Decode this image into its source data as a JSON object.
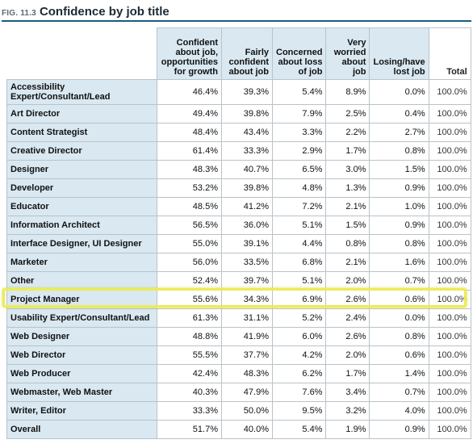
{
  "figure": {
    "number": "FIG. 11.3",
    "title": "Confidence by job title"
  },
  "chart_data": {
    "type": "table",
    "title": "Confidence by job title",
    "columns": [
      "Confident about job, opportunities for growth",
      "Fairly confident about job",
      "Concerned about loss of job",
      "Very worried about job",
      "Losing/have lost job",
      "Total"
    ],
    "column_lines": [
      [
        "Confident",
        "about job,",
        "opportunities",
        "for growth"
      ],
      [
        "Fairly",
        "confident",
        "about job"
      ],
      [
        "Concerned",
        "about loss",
        "of job"
      ],
      [
        "Very",
        "worried",
        "about",
        "job"
      ],
      [
        "Losing/have",
        "lost job"
      ],
      [
        "Total"
      ]
    ],
    "highlighted_row": "Project Manager",
    "rows": [
      {
        "label": "Accessibility Expert/Consultant/Lead",
        "label_lines": [
          "Accessibility",
          "Expert/Consultant/Lead"
        ],
        "values": [
          "46.4%",
          "39.3%",
          "5.4%",
          "8.9%",
          "0.0%",
          "100.0%"
        ]
      },
      {
        "label": "Art Director",
        "values": [
          "49.4%",
          "39.8%",
          "7.9%",
          "2.5%",
          "0.4%",
          "100.0%"
        ]
      },
      {
        "label": "Content Strategist",
        "values": [
          "48.4%",
          "43.4%",
          "3.3%",
          "2.2%",
          "2.7%",
          "100.0%"
        ]
      },
      {
        "label": "Creative Director",
        "values": [
          "61.4%",
          "33.3%",
          "2.9%",
          "1.7%",
          "0.8%",
          "100.0%"
        ]
      },
      {
        "label": "Designer",
        "values": [
          "48.3%",
          "40.7%",
          "6.5%",
          "3.0%",
          "1.5%",
          "100.0%"
        ]
      },
      {
        "label": "Developer",
        "values": [
          "53.2%",
          "39.8%",
          "4.8%",
          "1.3%",
          "0.9%",
          "100.0%"
        ]
      },
      {
        "label": "Educator",
        "values": [
          "48.5%",
          "41.2%",
          "7.2%",
          "2.1%",
          "1.0%",
          "100.0%"
        ]
      },
      {
        "label": "Information Architect",
        "values": [
          "56.5%",
          "36.0%",
          "5.1%",
          "1.5%",
          "0.9%",
          "100.0%"
        ]
      },
      {
        "label": "Interface Designer, UI Designer",
        "values": [
          "55.0%",
          "39.1%",
          "4.4%",
          "0.8%",
          "0.8%",
          "100.0%"
        ]
      },
      {
        "label": "Marketer",
        "values": [
          "56.0%",
          "33.5%",
          "6.8%",
          "2.1%",
          "1.6%",
          "100.0%"
        ]
      },
      {
        "label": "Other",
        "values": [
          "52.4%",
          "39.7%",
          "5.1%",
          "2.0%",
          "0.7%",
          "100.0%"
        ]
      },
      {
        "label": "Project Manager",
        "values": [
          "55.6%",
          "34.3%",
          "6.9%",
          "2.6%",
          "0.6%",
          "100.0%"
        ]
      },
      {
        "label": "Usability Expert/Consultant/Lead",
        "values": [
          "61.3%",
          "31.1%",
          "5.2%",
          "2.4%",
          "0.0%",
          "100.0%"
        ]
      },
      {
        "label": "Web Designer",
        "values": [
          "48.8%",
          "41.9%",
          "6.0%",
          "2.6%",
          "0.8%",
          "100.0%"
        ]
      },
      {
        "label": "Web Director",
        "values": [
          "55.5%",
          "37.7%",
          "4.2%",
          "2.0%",
          "0.6%",
          "100.0%"
        ]
      },
      {
        "label": "Web Producer",
        "values": [
          "42.4%",
          "48.3%",
          "6.2%",
          "1.7%",
          "1.4%",
          "100.0%"
        ]
      },
      {
        "label": "Webmaster, Web Master",
        "values": [
          "40.3%",
          "47.9%",
          "7.6%",
          "3.4%",
          "0.7%",
          "100.0%"
        ]
      },
      {
        "label": "Writer, Editor",
        "values": [
          "33.3%",
          "50.0%",
          "9.5%",
          "3.2%",
          "4.0%",
          "100.0%"
        ]
      },
      {
        "label": "Overall",
        "values": [
          "51.7%",
          "40.0%",
          "5.4%",
          "1.9%",
          "0.9%",
          "100.0%"
        ]
      }
    ]
  },
  "colors": {
    "header_fill": "#d9e8f1",
    "rule": "#1b5b7e",
    "highlight": "#ecec55"
  }
}
